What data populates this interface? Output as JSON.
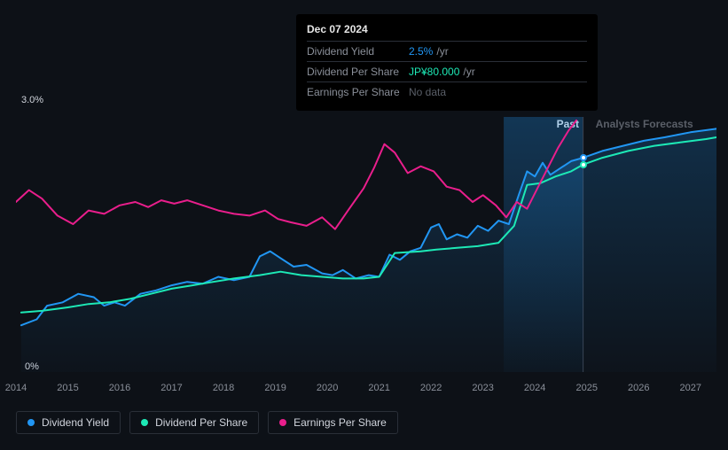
{
  "chart": {
    "background_color": "#0d1117",
    "plot_bg": "#151c26",
    "y_axis": {
      "top_label": "3.0%",
      "bottom_label": "0%",
      "min": 0,
      "max": 3.0
    },
    "x_axis": {
      "min": 2014,
      "max": 2027.5,
      "ticks": [
        2014,
        2015,
        2016,
        2017,
        2018,
        2019,
        2020,
        2021,
        2022,
        2023,
        2024,
        2025,
        2026,
        2027
      ]
    },
    "past_forecast_split": 2024.93,
    "highlight_band": {
      "start": 2023.4,
      "end": 2024.93
    },
    "labels": {
      "past": "Past",
      "forecast": "Analysts Forecasts"
    },
    "tooltip": {
      "date": "Dec 07 2024",
      "rows": [
        {
          "label": "Dividend Yield",
          "value": "2.5%",
          "unit": "/yr",
          "color_key": "yield"
        },
        {
          "label": "Dividend Per Share",
          "value": "JP¥80.000",
          "unit": "/yr",
          "color_key": "dps"
        },
        {
          "label": "Earnings Per Share",
          "no_data": "No data"
        }
      ]
    },
    "markers": [
      {
        "x": 2024.93,
        "y": 2.52,
        "color": "#2196f3"
      },
      {
        "x": 2024.93,
        "y": 2.44,
        "color": "#1de9b6"
      }
    ],
    "series": [
      {
        "key": "yield",
        "label": "Dividend Yield",
        "color": "#2196f3",
        "width": 2,
        "fill": true,
        "fill_opacity": 0.18,
        "points": [
          [
            2014.1,
            0.55
          ],
          [
            2014.4,
            0.62
          ],
          [
            2014.6,
            0.78
          ],
          [
            2014.9,
            0.82
          ],
          [
            2015.2,
            0.92
          ],
          [
            2015.5,
            0.88
          ],
          [
            2015.7,
            0.78
          ],
          [
            2015.9,
            0.82
          ],
          [
            2016.1,
            0.78
          ],
          [
            2016.4,
            0.92
          ],
          [
            2016.7,
            0.96
          ],
          [
            2017.0,
            1.02
          ],
          [
            2017.3,
            1.06
          ],
          [
            2017.6,
            1.04
          ],
          [
            2017.9,
            1.12
          ],
          [
            2018.2,
            1.08
          ],
          [
            2018.5,
            1.12
          ],
          [
            2018.7,
            1.36
          ],
          [
            2018.9,
            1.42
          ],
          [
            2019.1,
            1.34
          ],
          [
            2019.35,
            1.24
          ],
          [
            2019.6,
            1.26
          ],
          [
            2019.9,
            1.16
          ],
          [
            2020.1,
            1.14
          ],
          [
            2020.3,
            1.2
          ],
          [
            2020.55,
            1.1
          ],
          [
            2020.8,
            1.14
          ],
          [
            2021.0,
            1.12
          ],
          [
            2021.2,
            1.38
          ],
          [
            2021.4,
            1.32
          ],
          [
            2021.6,
            1.42
          ],
          [
            2021.8,
            1.46
          ],
          [
            2022.0,
            1.7
          ],
          [
            2022.15,
            1.74
          ],
          [
            2022.3,
            1.56
          ],
          [
            2022.5,
            1.62
          ],
          [
            2022.7,
            1.58
          ],
          [
            2022.9,
            1.72
          ],
          [
            2023.1,
            1.66
          ],
          [
            2023.3,
            1.78
          ],
          [
            2023.5,
            1.74
          ],
          [
            2023.7,
            2.1
          ],
          [
            2023.85,
            2.36
          ],
          [
            2024.0,
            2.3
          ],
          [
            2024.15,
            2.46
          ],
          [
            2024.3,
            2.32
          ],
          [
            2024.5,
            2.4
          ],
          [
            2024.7,
            2.48
          ],
          [
            2024.93,
            2.52
          ],
          [
            2025.3,
            2.6
          ],
          [
            2025.7,
            2.66
          ],
          [
            2026.1,
            2.72
          ],
          [
            2026.5,
            2.76
          ],
          [
            2027.0,
            2.82
          ],
          [
            2027.5,
            2.86
          ]
        ]
      },
      {
        "key": "dps",
        "label": "Dividend Per Share",
        "color": "#1de9b6",
        "width": 2,
        "fill": false,
        "points": [
          [
            2014.1,
            0.7
          ],
          [
            2014.5,
            0.72
          ],
          [
            2015.0,
            0.76
          ],
          [
            2015.4,
            0.8
          ],
          [
            2015.8,
            0.82
          ],
          [
            2016.2,
            0.86
          ],
          [
            2016.6,
            0.92
          ],
          [
            2017.0,
            0.98
          ],
          [
            2017.4,
            1.02
          ],
          [
            2017.8,
            1.06
          ],
          [
            2018.2,
            1.1
          ],
          [
            2018.7,
            1.14
          ],
          [
            2019.1,
            1.18
          ],
          [
            2019.5,
            1.14
          ],
          [
            2019.9,
            1.12
          ],
          [
            2020.3,
            1.1
          ],
          [
            2020.7,
            1.1
          ],
          [
            2021.0,
            1.12
          ],
          [
            2021.3,
            1.4
          ],
          [
            2021.8,
            1.42
          ],
          [
            2022.1,
            1.44
          ],
          [
            2022.5,
            1.46
          ],
          [
            2022.9,
            1.48
          ],
          [
            2023.3,
            1.52
          ],
          [
            2023.6,
            1.72
          ],
          [
            2023.85,
            2.2
          ],
          [
            2024.1,
            2.22
          ],
          [
            2024.4,
            2.3
          ],
          [
            2024.7,
            2.36
          ],
          [
            2024.93,
            2.44
          ],
          [
            2025.3,
            2.52
          ],
          [
            2025.8,
            2.6
          ],
          [
            2026.3,
            2.66
          ],
          [
            2026.8,
            2.7
          ],
          [
            2027.3,
            2.74
          ],
          [
            2027.5,
            2.76
          ]
        ]
      },
      {
        "key": "eps",
        "label": "Earnings Per Share",
        "color": "#e91e8c",
        "width": 2,
        "fill": false,
        "points": [
          [
            2014.0,
            2.0
          ],
          [
            2014.25,
            2.14
          ],
          [
            2014.5,
            2.04
          ],
          [
            2014.8,
            1.84
          ],
          [
            2015.1,
            1.74
          ],
          [
            2015.4,
            1.9
          ],
          [
            2015.7,
            1.86
          ],
          [
            2016.0,
            1.96
          ],
          [
            2016.3,
            2.0
          ],
          [
            2016.55,
            1.94
          ],
          [
            2016.8,
            2.02
          ],
          [
            2017.05,
            1.98
          ],
          [
            2017.3,
            2.02
          ],
          [
            2017.6,
            1.96
          ],
          [
            2017.9,
            1.9
          ],
          [
            2018.2,
            1.86
          ],
          [
            2018.5,
            1.84
          ],
          [
            2018.8,
            1.9
          ],
          [
            2019.05,
            1.8
          ],
          [
            2019.3,
            1.76
          ],
          [
            2019.6,
            1.72
          ],
          [
            2019.9,
            1.82
          ],
          [
            2020.15,
            1.68
          ],
          [
            2020.4,
            1.9
          ],
          [
            2020.7,
            2.16
          ],
          [
            2020.9,
            2.4
          ],
          [
            2021.1,
            2.68
          ],
          [
            2021.3,
            2.58
          ],
          [
            2021.55,
            2.34
          ],
          [
            2021.8,
            2.42
          ],
          [
            2022.05,
            2.36
          ],
          [
            2022.3,
            2.18
          ],
          [
            2022.55,
            2.14
          ],
          [
            2022.8,
            2.0
          ],
          [
            2023.0,
            2.08
          ],
          [
            2023.25,
            1.96
          ],
          [
            2023.45,
            1.82
          ],
          [
            2023.65,
            2.0
          ],
          [
            2023.85,
            1.92
          ],
          [
            2024.05,
            2.16
          ],
          [
            2024.25,
            2.4
          ],
          [
            2024.45,
            2.64
          ],
          [
            2024.65,
            2.84
          ],
          [
            2024.8,
            2.96
          ]
        ]
      }
    ]
  },
  "legend": [
    {
      "label": "Dividend Yield",
      "color": "#2196f3"
    },
    {
      "label": "Dividend Per Share",
      "color": "#1de9b6"
    },
    {
      "label": "Earnings Per Share",
      "color": "#e91e8c"
    }
  ]
}
